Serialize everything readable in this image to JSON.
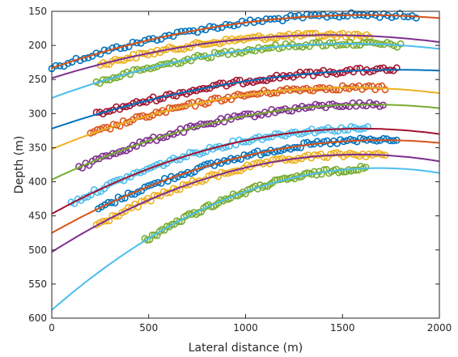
{
  "chart_data": {
    "type": "scatter",
    "title": "",
    "xlabel": "Lateral distance (m)",
    "ylabel": "Depth (m)",
    "xlim": [
      0,
      2000
    ],
    "ylim": [
      150,
      600
    ],
    "y_reversed": true,
    "grid": false,
    "legend": "none",
    "xticks": [
      0,
      500,
      1000,
      1500,
      2000
    ],
    "yticks": [
      150,
      200,
      250,
      300,
      350,
      400,
      450,
      500,
      550,
      600
    ],
    "xtick_labels": [
      "0",
      "500",
      "1000",
      "1500",
      "2000"
    ],
    "ytick_labels": [
      "150",
      "200",
      "250",
      "300",
      "350",
      "400",
      "450",
      "500",
      "550",
      "600"
    ],
    "marker": "open-circle",
    "series": [
      {
        "color": "#0072BD",
        "fit_color": "#D95319",
        "x_start": 0,
        "x_end": 1880,
        "fit_x": [
          0,
          800,
          2000
        ],
        "fit_y": [
          233,
          175,
          160
        ]
      },
      {
        "color": "#EDB120",
        "fit_color": "#7E2F8E",
        "x_start": 250,
        "x_end": 1640,
        "fit_x": [
          0,
          1350,
          2000
        ],
        "fit_y": [
          248,
          185,
          195
        ]
      },
      {
        "color": "#77AC30",
        "fit_color": "#4DBEEE",
        "x_start": 230,
        "x_end": 1800,
        "fit_x": [
          0,
          1400,
          2000
        ],
        "fit_y": [
          277,
          198,
          205
        ]
      },
      {
        "color": "#A2142F",
        "fit_color": "#0072BD",
        "x_start": 230,
        "x_end": 1780,
        "fit_x": [
          0,
          1500,
          2000
        ],
        "fit_y": [
          322,
          238,
          237
        ]
      },
      {
        "color": "#D95319",
        "fit_color": "#EDB120",
        "x_start": 200,
        "x_end": 1720,
        "fit_x": [
          0,
          1600,
          2000
        ],
        "fit_y": [
          352,
          262,
          270
        ]
      },
      {
        "color": "#7E2F8E",
        "fit_color": "#77AC30",
        "x_start": 140,
        "x_end": 1710,
        "fit_x": [
          0,
          1550,
          2000
        ],
        "fit_y": [
          397,
          287,
          292
        ]
      },
      {
        "color": "#4DBEEE",
        "fit_color": "#A2142F",
        "x_start": 100,
        "x_end": 1630,
        "fit_x": [
          0,
          1350,
          2000
        ],
        "fit_y": [
          447,
          325,
          330
        ]
      },
      {
        "color": "#0072BD",
        "fit_color": "#D95319",
        "x_start": 240,
        "x_end": 1780,
        "fit_x": [
          0,
          1550,
          2000
        ],
        "fit_y": [
          475,
          340,
          343
        ]
      },
      {
        "color": "#EDB120",
        "fit_color": "#7E2F8E",
        "x_start": 230,
        "x_end": 1720,
        "fit_x": [
          0,
          1600,
          2000
        ],
        "fit_y": [
          503,
          360,
          370
        ]
      },
      {
        "color": "#77AC30",
        "fit_color": "#4DBEEE",
        "x_start": 480,
        "x_end": 1620,
        "fit_x": [
          0,
          1650,
          2000
        ],
        "fit_y": [
          588,
          380,
          387
        ]
      }
    ]
  }
}
